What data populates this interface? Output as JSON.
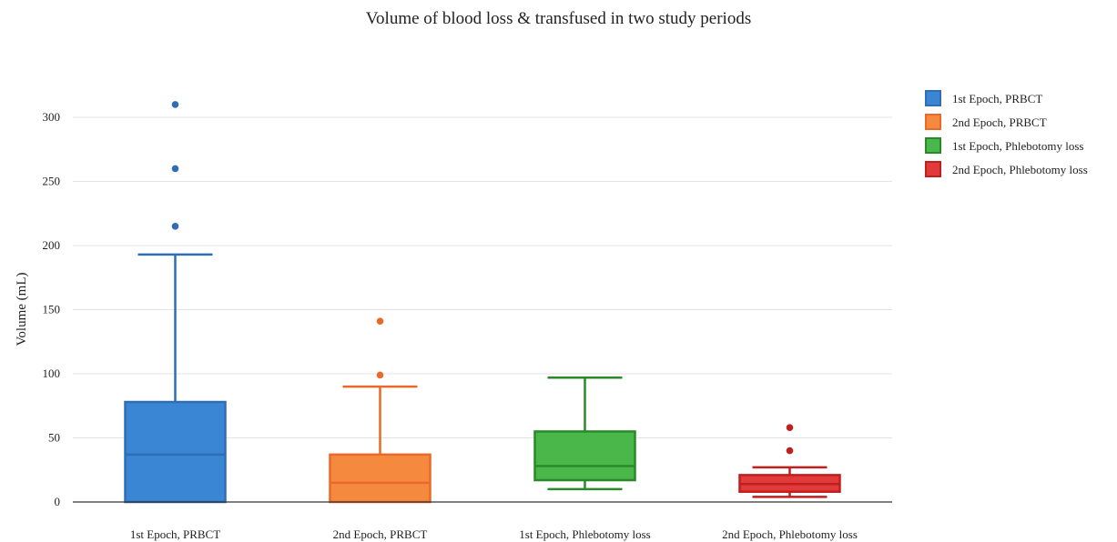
{
  "chart_data": {
    "type": "box",
    "title": "Volume of blood loss & transfused in two study periods",
    "xlabel": "",
    "ylabel": "Volume (mL)",
    "ylim": [
      0,
      330
    ],
    "yticks": [
      0,
      50,
      100,
      150,
      200,
      250,
      300
    ],
    "grid": true,
    "legend_position": "right",
    "categories": [
      "1st Epoch, PRBCT",
      "2nd Epoch, PRBCT",
      "1st Epoch, Phlebotomy loss",
      "2nd Epoch, Phlebotomy loss"
    ],
    "series": [
      {
        "name": "1st Epoch, PRBCT",
        "color": "#2f6eb5",
        "fill": "#3a86d4",
        "min": 0,
        "q1": 0,
        "median": 37,
        "q3": 78,
        "max": 193,
        "outliers": [
          215,
          260,
          310
        ]
      },
      {
        "name": "2nd Epoch, PRBCT",
        "color": "#e8692a",
        "fill": "#f58a3f",
        "min": 0,
        "q1": 0,
        "median": 15,
        "q3": 37,
        "max": 90,
        "outliers": [
          99,
          141
        ]
      },
      {
        "name": "1st Epoch, Phlebotomy loss",
        "color": "#2a8a2a",
        "fill": "#49b749",
        "min": 10,
        "q1": 17,
        "median": 28,
        "q3": 55,
        "max": 97,
        "outliers": []
      },
      {
        "name": "2nd Epoch, Phlebotomy loss",
        "color": "#c11e1e",
        "fill": "#e03a3a",
        "min": 4,
        "q1": 8,
        "median": 14,
        "q3": 21,
        "max": 27,
        "outliers": [
          40,
          58
        ]
      }
    ]
  }
}
